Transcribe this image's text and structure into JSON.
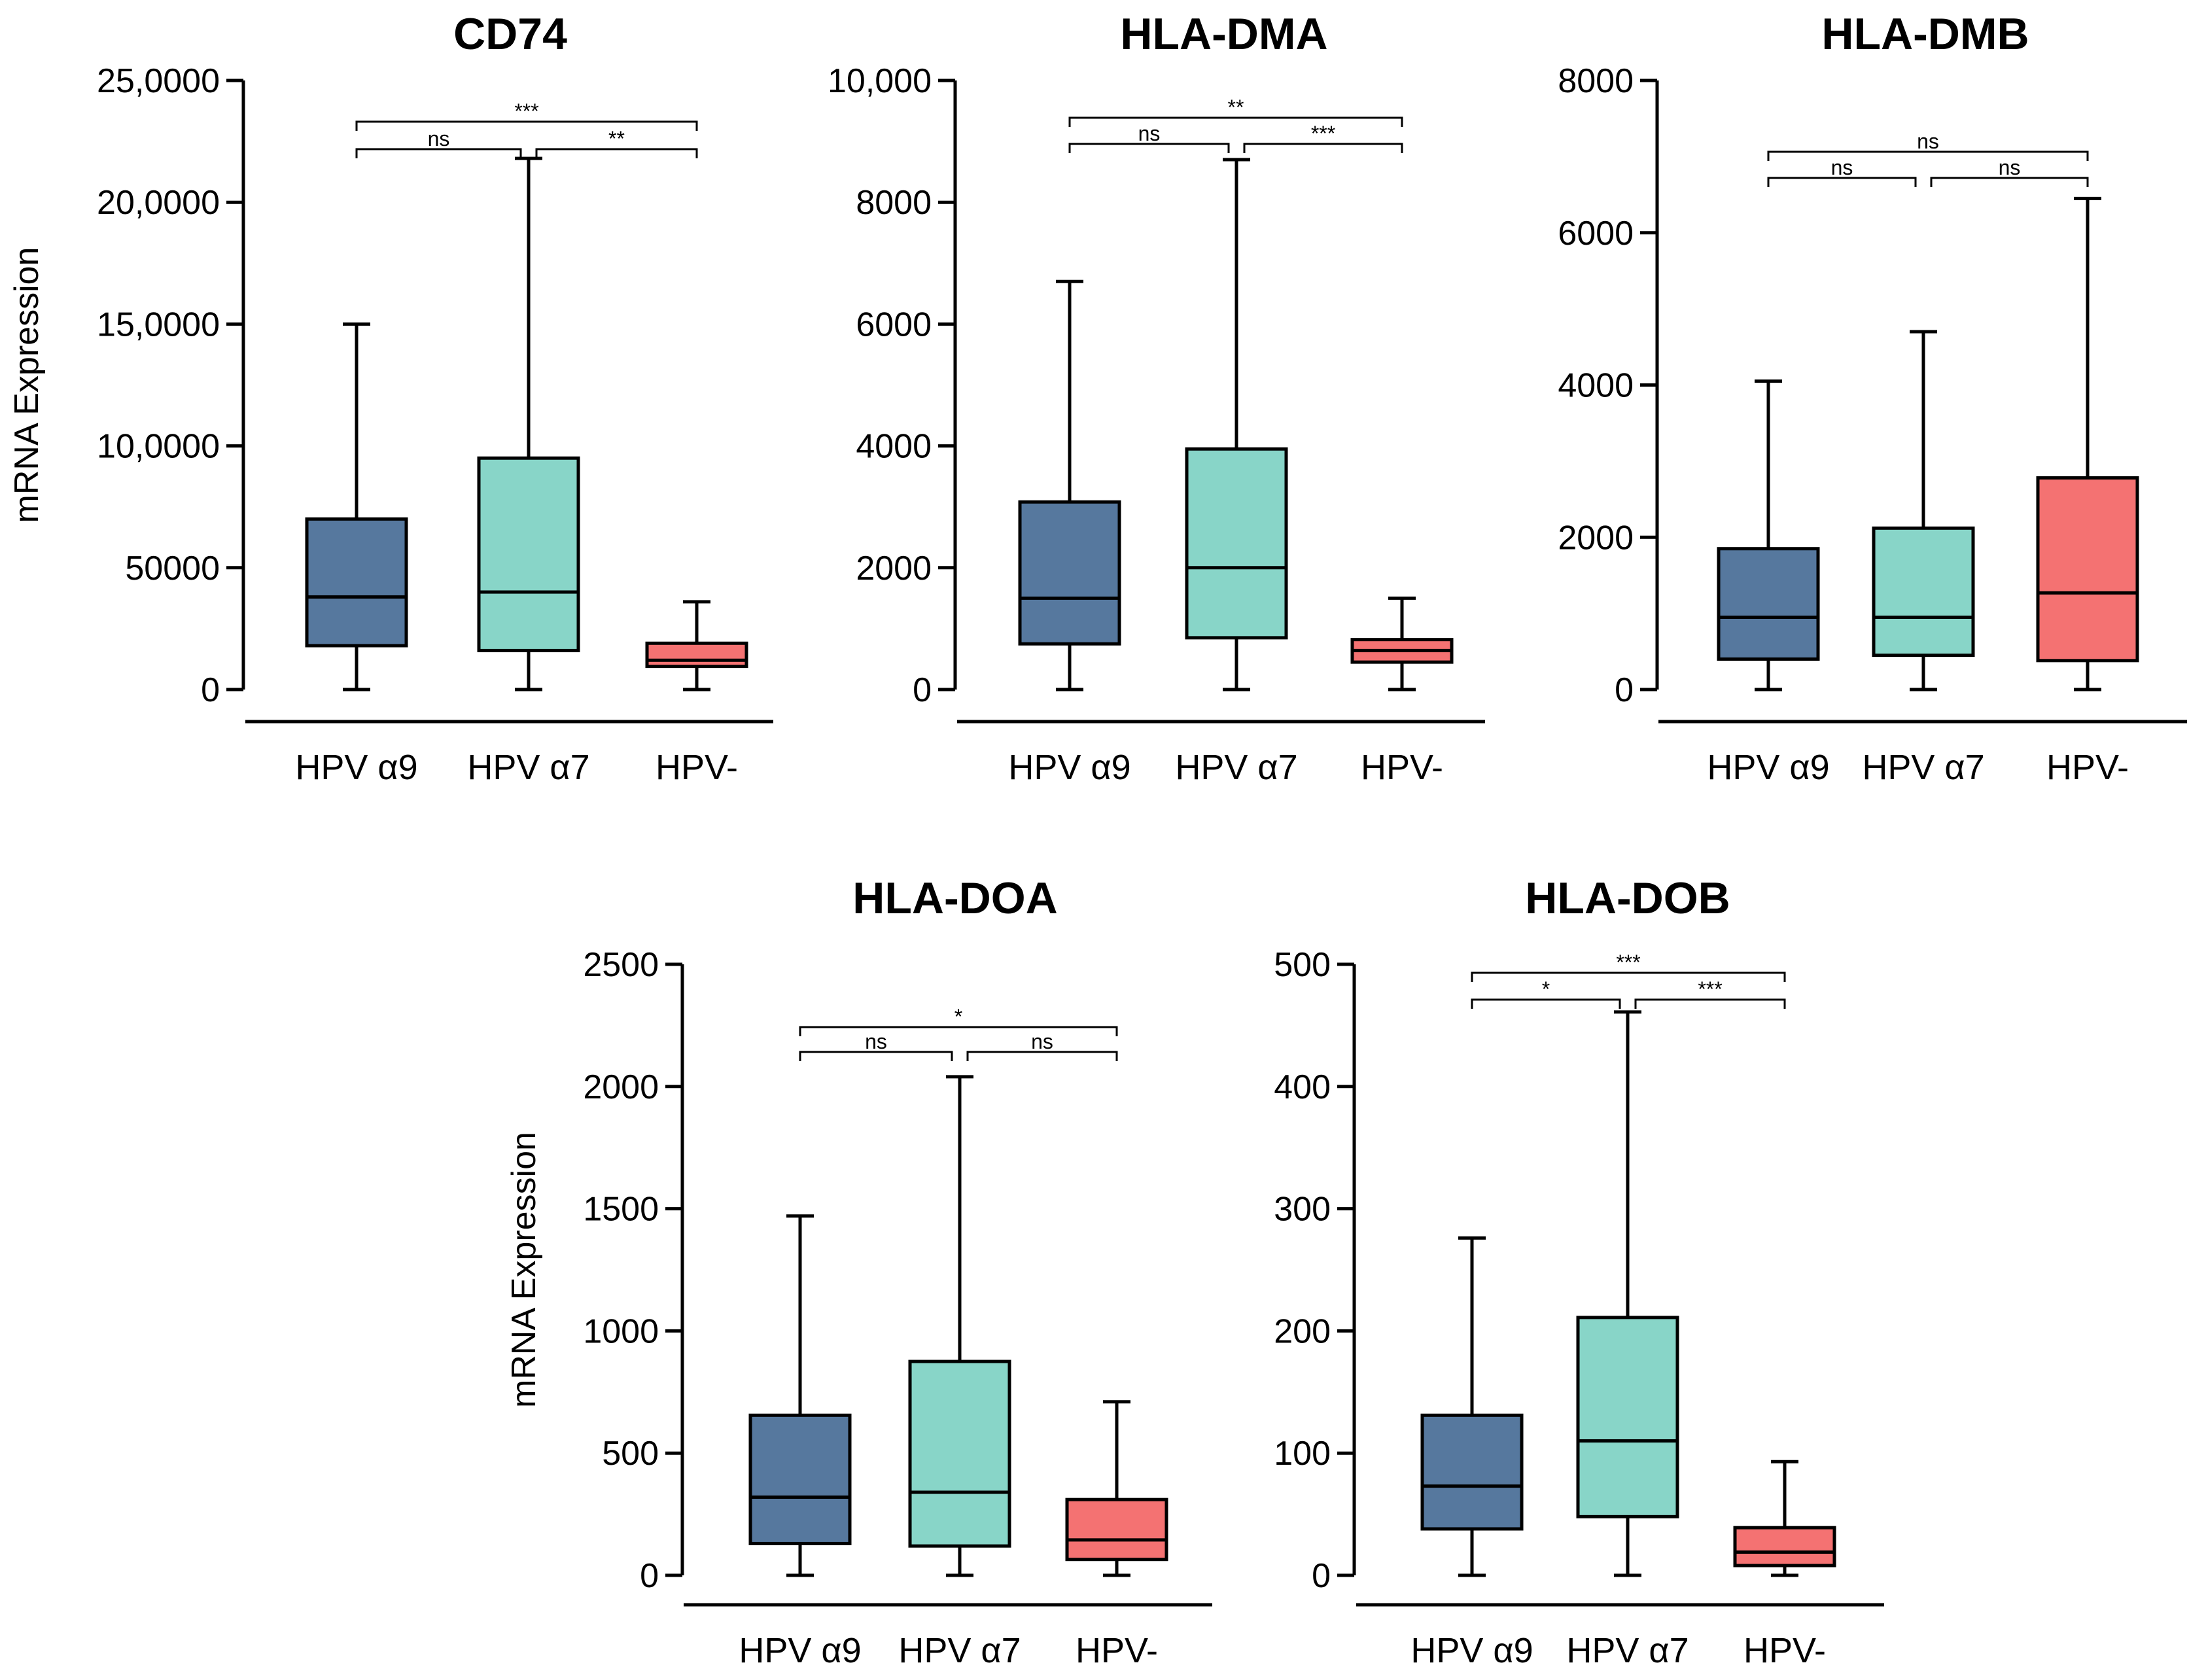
{
  "chart_data": [
    {
      "type": "boxplot",
      "title": "CD74",
      "ylabel": "mRNA Expression",
      "ylim": [
        0,
        250000
      ],
      "yticks": [
        0,
        50000,
        100000,
        150000,
        200000,
        250000
      ],
      "ytick_labels": [
        "0",
        "50000",
        "10,0000",
        "15,0000",
        "20,0000",
        "25,0000"
      ],
      "categories": [
        "HPV α9",
        "HPV α7",
        "HPV-"
      ],
      "boxes": [
        {
          "group": "HPV α9",
          "min": 0,
          "q1": 18000,
          "median": 38000,
          "q3": 70000,
          "max": 150000
        },
        {
          "group": "HPV α7",
          "min": 0,
          "q1": 16000,
          "median": 40000,
          "q3": 95000,
          "max": 218000
        },
        {
          "group": "HPV-",
          "min": 0,
          "q1": 9500,
          "median": 12000,
          "q3": 19000,
          "max": 36000
        }
      ],
      "significance": [
        {
          "from": 0,
          "to": 2,
          "label": "***",
          "tier": 2
        },
        {
          "from": 0,
          "to": 1,
          "label": "ns",
          "tier": 1
        },
        {
          "from": 1,
          "to": 2,
          "label": "**",
          "tier": 1
        }
      ]
    },
    {
      "type": "boxplot",
      "title": "HLA-DMA",
      "ylabel": "",
      "ylim": [
        0,
        10000
      ],
      "yticks": [
        0,
        2000,
        4000,
        6000,
        8000,
        10000
      ],
      "ytick_labels": [
        "0",
        "2000",
        "4000",
        "6000",
        "8000",
        "10,000"
      ],
      "categories": [
        "HPV α9",
        "HPV α7",
        "HPV-"
      ],
      "boxes": [
        {
          "group": "HPV α9",
          "min": 0,
          "q1": 750,
          "median": 1500,
          "q3": 3080,
          "max": 6700
        },
        {
          "group": "HPV α7",
          "min": 0,
          "q1": 850,
          "median": 2000,
          "q3": 3950,
          "max": 8700
        },
        {
          "group": "HPV-",
          "min": 0,
          "q1": 450,
          "median": 640,
          "q3": 820,
          "max": 1500
        }
      ],
      "significance": [
        {
          "from": 0,
          "to": 2,
          "label": "**",
          "tier": 2
        },
        {
          "from": 0,
          "to": 1,
          "label": "ns",
          "tier": 1
        },
        {
          "from": 1,
          "to": 2,
          "label": "***",
          "tier": 1
        }
      ]
    },
    {
      "type": "boxplot",
      "title": "HLA-DMB",
      "ylabel": "",
      "ylim": [
        0,
        8000
      ],
      "yticks": [
        0,
        2000,
        4000,
        6000,
        8000
      ],
      "ytick_labels": [
        "0",
        "2000",
        "4000",
        "6000",
        "8000"
      ],
      "categories": [
        "HPV α9",
        "HPV α7",
        "HPV-"
      ],
      "boxes": [
        {
          "group": "HPV α9",
          "min": 0,
          "q1": 400,
          "median": 950,
          "q3": 1850,
          "max": 4050
        },
        {
          "group": "HPV α7",
          "min": 0,
          "q1": 450,
          "median": 950,
          "q3": 2120,
          "max": 4700
        },
        {
          "group": "HPV-",
          "min": 0,
          "q1": 380,
          "median": 1270,
          "q3": 2780,
          "max": 6450
        }
      ],
      "significance": [
        {
          "from": 0,
          "to": 2,
          "label": "ns",
          "tier": 2
        },
        {
          "from": 0,
          "to": 1,
          "label": "ns",
          "tier": 1
        },
        {
          "from": 1,
          "to": 2,
          "label": "ns",
          "tier": 1
        }
      ]
    },
    {
      "type": "boxplot",
      "title": "HLA-DOA",
      "ylabel": "mRNA Expression",
      "ylim": [
        0,
        2500
      ],
      "yticks": [
        0,
        500,
        1000,
        1500,
        2000,
        2500
      ],
      "ytick_labels": [
        "0",
        "500",
        "1000",
        "1500",
        "2000",
        "2500"
      ],
      "categories": [
        "HPV α9",
        "HPV α7",
        "HPV-"
      ],
      "boxes": [
        {
          "group": "HPV α9",
          "min": 0,
          "q1": 130,
          "median": 320,
          "q3": 655,
          "max": 1470
        },
        {
          "group": "HPV α7",
          "min": 0,
          "q1": 120,
          "median": 340,
          "q3": 875,
          "max": 2040
        },
        {
          "group": "HPV-",
          "min": 0,
          "q1": 65,
          "median": 145,
          "q3": 310,
          "max": 710
        }
      ],
      "significance": [
        {
          "from": 0,
          "to": 2,
          "label": "*",
          "tier": 2
        },
        {
          "from": 0,
          "to": 1,
          "label": "ns",
          "tier": 1
        },
        {
          "from": 1,
          "to": 2,
          "label": "ns",
          "tier": 1
        }
      ]
    },
    {
      "type": "boxplot",
      "title": "HLA-DOB",
      "ylabel": "",
      "ylim": [
        0,
        500
      ],
      "yticks": [
        0,
        100,
        200,
        300,
        400,
        500
      ],
      "ytick_labels": [
        "0",
        "100",
        "200",
        "300",
        "400",
        "500"
      ],
      "categories": [
        "HPV α9",
        "HPV α7",
        "HPV-"
      ],
      "boxes": [
        {
          "group": "HPV α9",
          "min": 0,
          "q1": 38,
          "median": 73,
          "q3": 131,
          "max": 276
        },
        {
          "group": "HPV α7",
          "min": 0,
          "q1": 48,
          "median": 110,
          "q3": 211,
          "max": 461
        },
        {
          "group": "HPV-",
          "min": 0,
          "q1": 8,
          "median": 19,
          "q3": 39,
          "max": 93
        }
      ],
      "significance": [
        {
          "from": 0,
          "to": 2,
          "label": "***",
          "tier": 2
        },
        {
          "from": 0,
          "to": 1,
          "label": "*",
          "tier": 1
        },
        {
          "from": 1,
          "to": 2,
          "label": "***",
          "tier": 1
        }
      ]
    }
  ],
  "colors": {
    "HPV α9": "#56789e",
    "HPV α7": "#88d5c8",
    "HPV-": "#f47272"
  }
}
